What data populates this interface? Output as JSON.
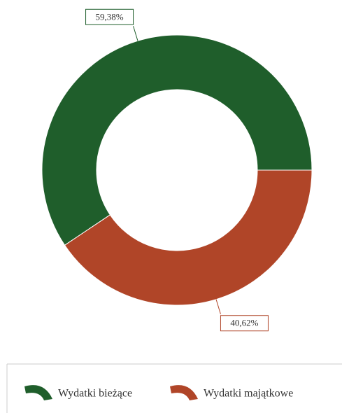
{
  "chart_data": {
    "type": "donut",
    "categories": [
      "Wydatki bieżące",
      "Wydatki majątkowe"
    ],
    "values": [
      59.38,
      40.62
    ],
    "value_labels": [
      "59,38%",
      "40,62%"
    ],
    "colors": [
      "#1f5e2b",
      "#b04528"
    ],
    "legend": "bottom"
  }
}
